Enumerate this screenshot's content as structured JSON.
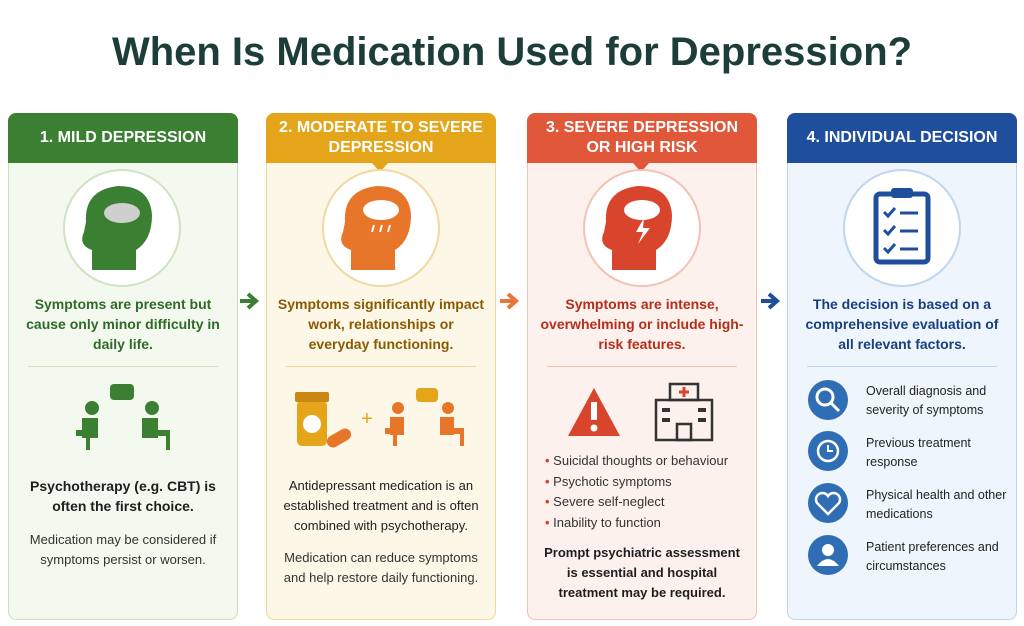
{
  "title": "When Is Medication Used for Depression?",
  "columns": [
    {
      "header": "1. MILD DEPRESSION",
      "summary": "Symptoms are present but cause only minor difficulty in daily life.",
      "main": "Psychotherapy (e.g. CBT) is often the first choice.",
      "note": "Medication may be considered if symptoms persist or worsen."
    },
    {
      "header": "2. MODERATE TO SEVERE DEPRESSION",
      "summary": "Symptoms significantly impact work, relationships or everyday functioning.",
      "main": "Antidepressant medication is an established treatment and is often combined with psychotherapy.",
      "note": "Medication can reduce symptoms and help restore daily functioning."
    },
    {
      "header": "3. SEVERE DEPRESSION OR HIGH RISK",
      "summary": "Symptoms are intense, overwhelming or include high-risk features.",
      "bullets": [
        "Suicidal thoughts or behaviour",
        "Psychotic symptoms",
        "Severe self-neglect",
        "Inability to function"
      ],
      "main": "Prompt psychiatric assessment is essential and hospital treatment may be required."
    },
    {
      "header": "4. INDIVIDUAL DECISION",
      "summary": "The decision is based on a comprehensive evaluation of all relevant factors.",
      "factors": [
        "Overall diagnosis and severity of symptoms",
        "Previous treatment response",
        "Physical health and other medications",
        "Patient preferences and circumstances"
      ]
    }
  ]
}
